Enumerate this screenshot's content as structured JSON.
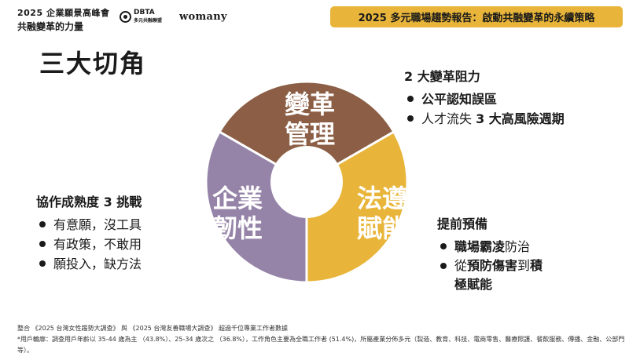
{
  "header": {
    "event_year": "2025 企業願景高峰會",
    "event_name": "共融變革的力量",
    "dbta_logo_text": "DBTA",
    "dbta_logo_sub": "多元共融聯盟",
    "womany_logo_text": "womany",
    "report_banner": "2025 多元職場趨勢報告：啟動共融變革的永續策略"
  },
  "title": "三大切角",
  "diagram": {
    "segments": [
      {
        "line1": "變革",
        "line2": "管理",
        "color": "#8b5e45"
      },
      {
        "line1": "法遵",
        "line2": "賦能",
        "color": "#e8b53a"
      },
      {
        "line1": "企業",
        "line2": "韌性",
        "color": "#9584a8"
      }
    ]
  },
  "blocks": {
    "right_top": {
      "title": "2 大變革阻力",
      "item1": "公平認知誤區",
      "item2_pre": "人才流失 ",
      "item2_bold": "3 大高風險週期"
    },
    "right_bottom": {
      "title": "提前預備",
      "item1_bold": "職場霸凌",
      "item1_post": "防治",
      "item2_pre": "從",
      "item2_bold1": "預防傷害",
      "item2_mid": "到",
      "item2_bold2": "積",
      "item2_line2": "極賦能"
    },
    "left": {
      "title": "協作成熟度 3 挑戰",
      "item1": "有意願，沒工具",
      "item2": "有政策，不敢用",
      "item3": "願投入，缺方法"
    }
  },
  "footer": {
    "line1": "整合 《2025 台灣女性趨勢大調查》 與 《2025 台灣友善職場大調查》 超過千位專業工作者數據",
    "line2": "*用戶輪廓：調查用戶年齡以 35-44 歲為主 （43.8%）、25-34 歲次之 （36.8%），工作角色主要為全職工作者 (51.4%)，所屬產業分佈多元（製造、教育、科技、電商零售、醫療照護、餐飲服務、傳播、金融、公部門等）。"
  }
}
